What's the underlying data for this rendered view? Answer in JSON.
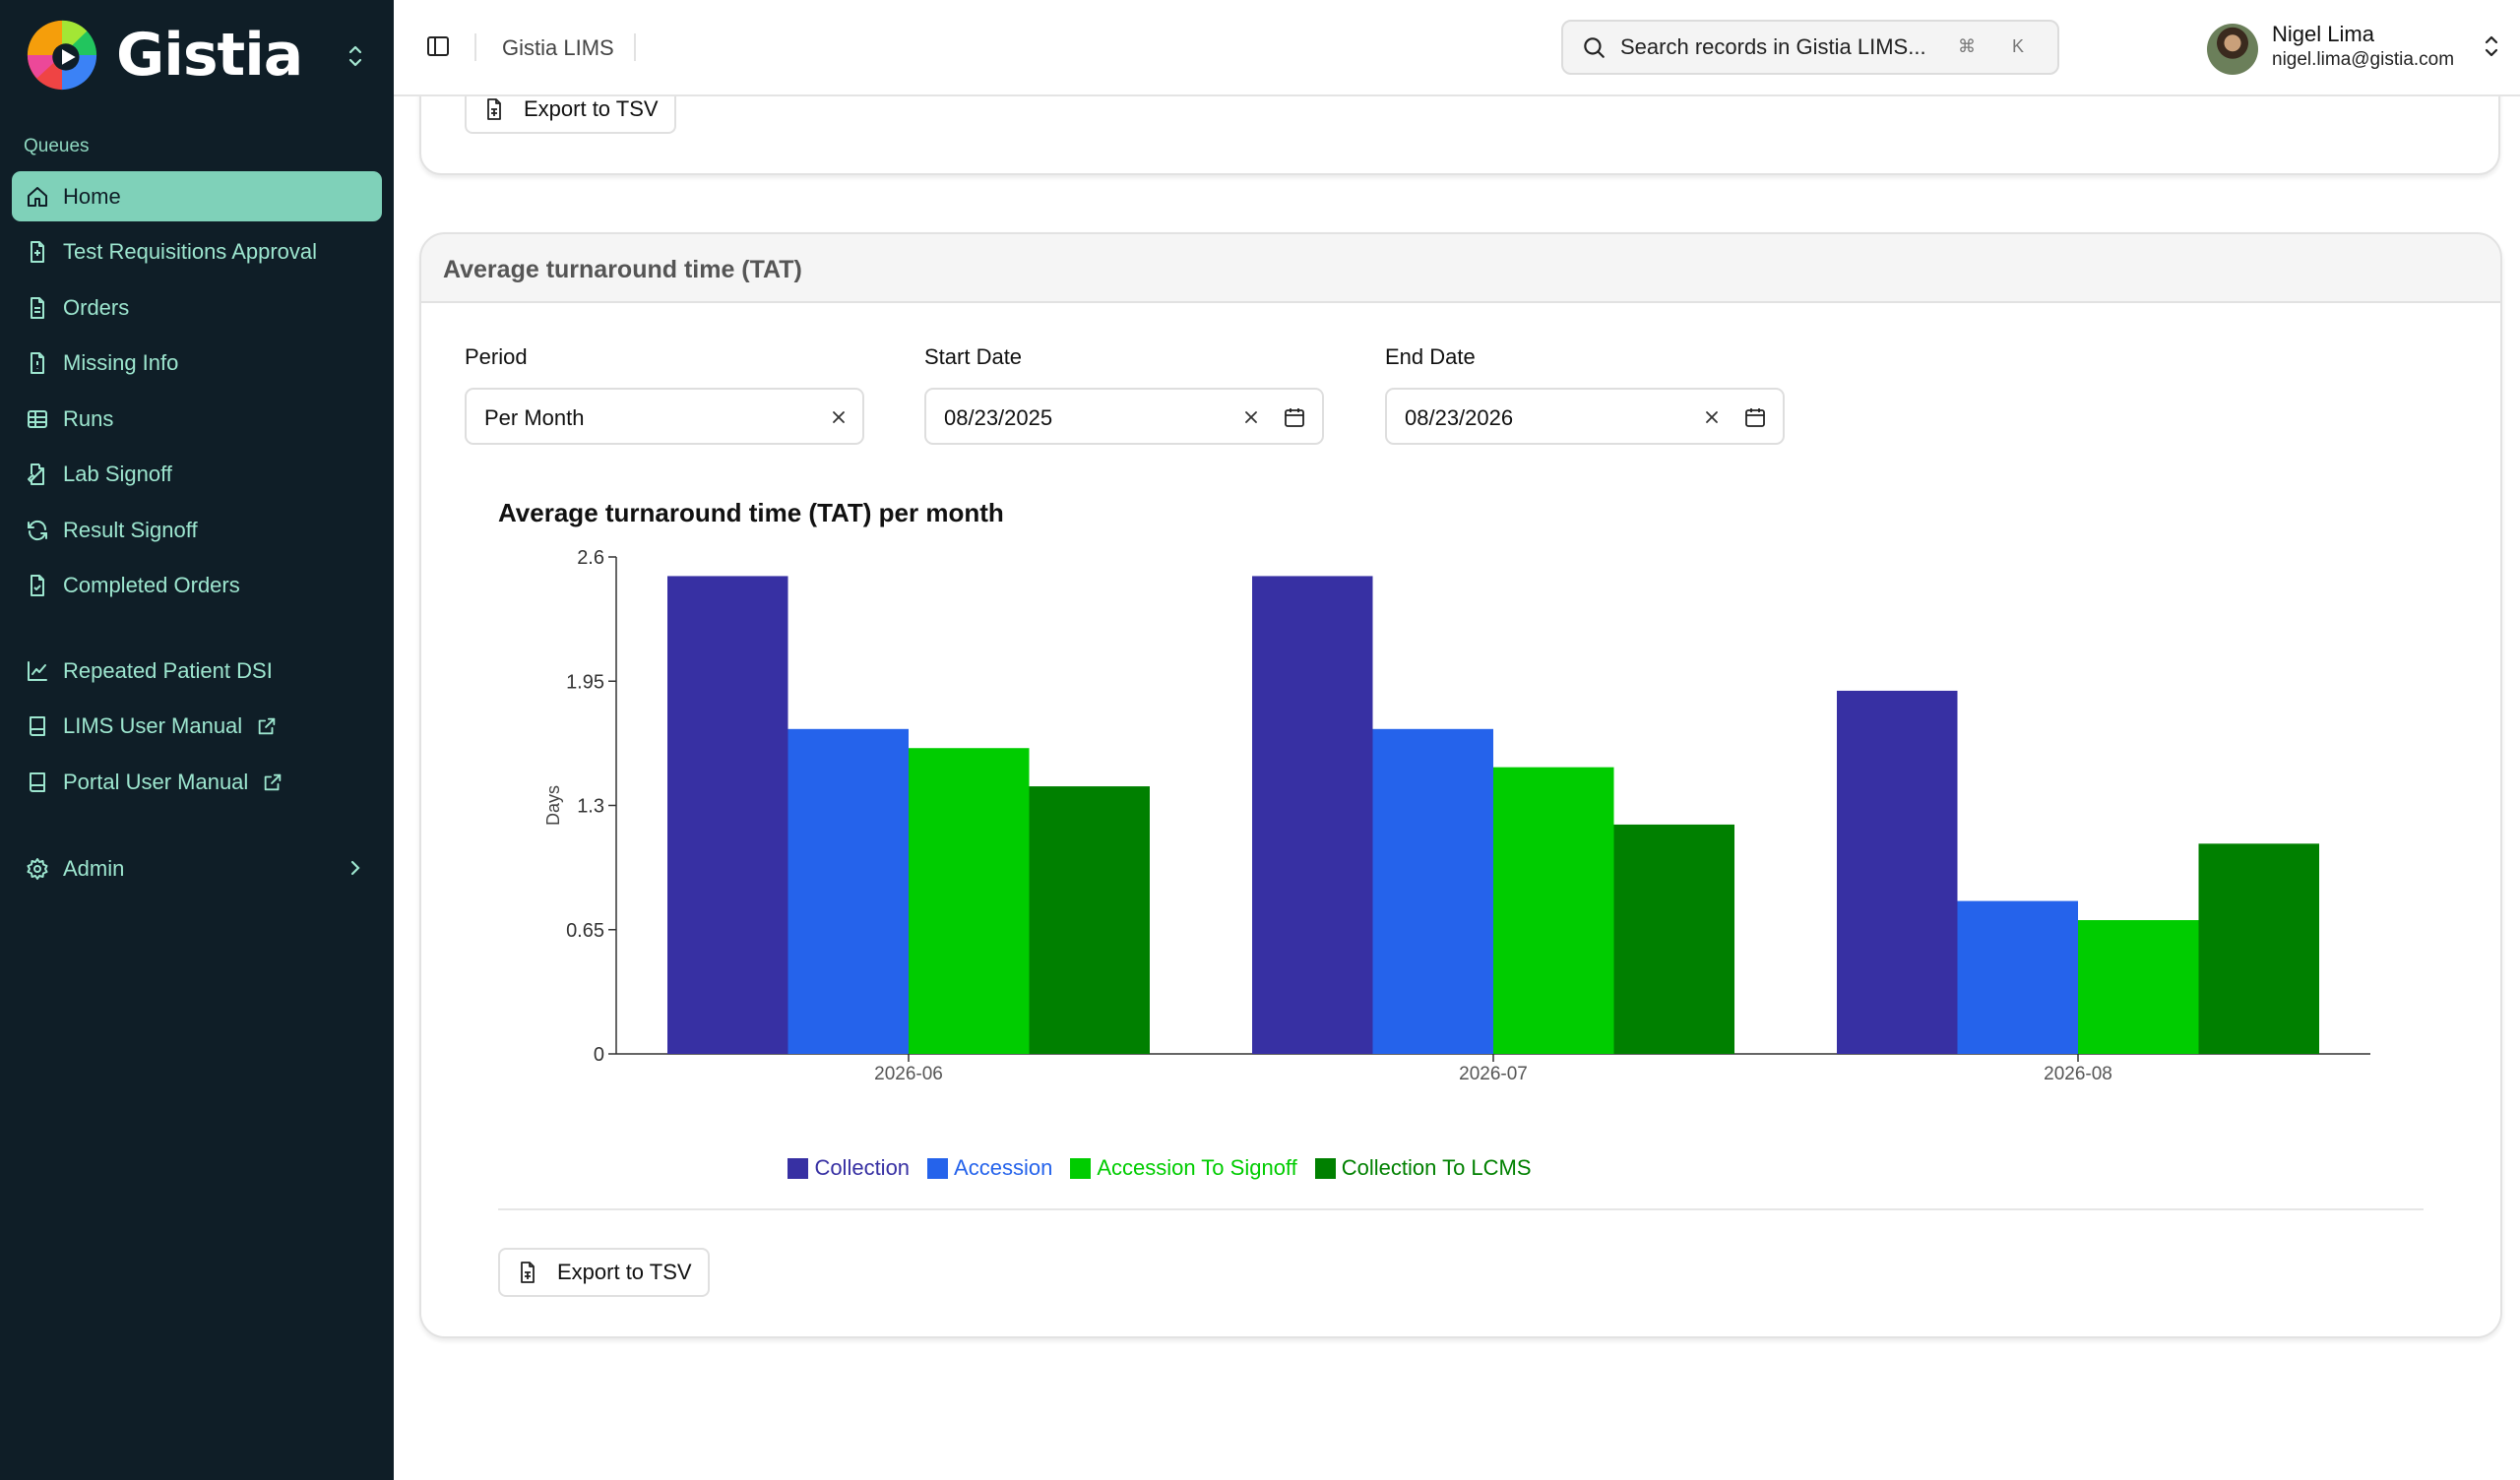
{
  "brand": {
    "name": "Gistia"
  },
  "sidebar": {
    "section_label": "Queues",
    "items": [
      {
        "label": "Home",
        "icon": "home-icon",
        "active": true
      },
      {
        "label": "Test Requisitions Approval",
        "icon": "file-plus-icon"
      },
      {
        "label": "Orders",
        "icon": "file-text-icon"
      },
      {
        "label": "Missing Info",
        "icon": "file-alert-icon"
      },
      {
        "label": "Runs",
        "icon": "table-icon"
      },
      {
        "label": "Lab Signoff",
        "icon": "file-signature-icon"
      },
      {
        "label": "Result Signoff",
        "icon": "refresh-icon"
      },
      {
        "label": "Completed Orders",
        "icon": "file-check-icon"
      }
    ],
    "links": [
      {
        "label": "Repeated Patient DSI",
        "icon": "line-chart-icon"
      },
      {
        "label": "LIMS User Manual",
        "icon": "book-icon",
        "external": true
      },
      {
        "label": "Portal User Manual",
        "icon": "book-icon",
        "external": true
      }
    ],
    "admin": {
      "label": "Admin",
      "icon": "gear-icon"
    }
  },
  "header": {
    "title": "Gistia LIMS",
    "search_placeholder": "Search records in Gistia LIMS...",
    "shortcut": "⌘ K",
    "user": {
      "name": "Nigel Lima",
      "email": "nigel.lima@gistia.com"
    }
  },
  "top_card": {
    "export_label": "Export to TSV"
  },
  "tat_card": {
    "title": "Average turnaround time (TAT)",
    "period": {
      "label": "Period",
      "value": "Per Month"
    },
    "start_date": {
      "label": "Start Date",
      "value": "08/23/2025"
    },
    "end_date": {
      "label": "End Date",
      "value": "08/23/2026"
    },
    "chart_title": "Average turnaround time (TAT) per month",
    "export_label": "Export to TSV"
  },
  "chart_data": {
    "type": "bar",
    "title": "Average turnaround time (TAT) per month",
    "xlabel": "",
    "ylabel": "Days",
    "ylim": [
      0,
      2.6
    ],
    "yticks": [
      0,
      0.65,
      1.3,
      1.95,
      2.6
    ],
    "categories": [
      "2026-06",
      "2026-07",
      "2026-08"
    ],
    "series": [
      {
        "name": "Collection",
        "color": "#3730a3",
        "values": [
          2.5,
          2.5,
          1.9
        ]
      },
      {
        "name": "Accession",
        "color": "#2563eb",
        "values": [
          1.7,
          1.7,
          0.8
        ]
      },
      {
        "name": "Accession To Signoff",
        "color": "#00cc00",
        "values": [
          1.6,
          1.5,
          0.7
        ]
      },
      {
        "name": "Collection To LCMS",
        "color": "#008000",
        "values": [
          1.4,
          1.2,
          1.1
        ]
      }
    ],
    "legend": "bottom",
    "grid": false
  }
}
